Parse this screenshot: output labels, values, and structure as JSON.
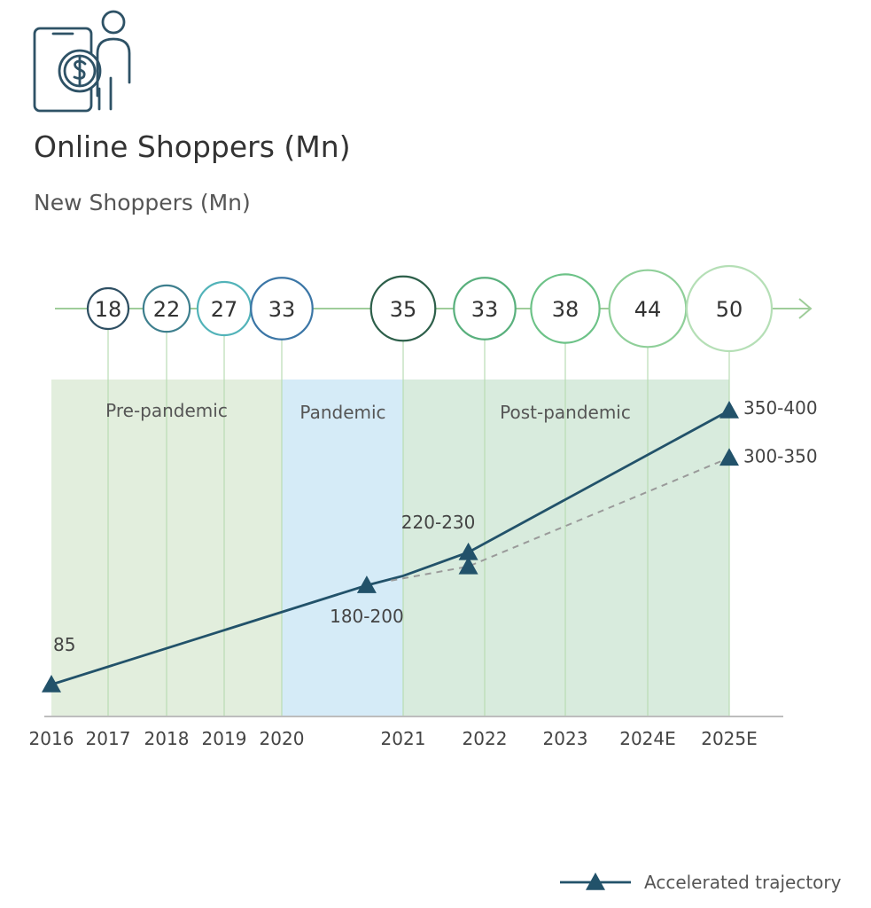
{
  "header": {
    "icon": "phone-shopper-dollar-icon",
    "title": "Online Shoppers (Mn)",
    "subtitle": "New Shoppers (Mn)"
  },
  "colors": {
    "dark_teal": "#22526a",
    "phase_pre": "#e2eedd",
    "phase_pandemic": "#d5ebf7",
    "phase_post": "#d8ebdd",
    "timeline": "#9fcd9a",
    "dashed": "#9a9a9a"
  },
  "chart_data": {
    "type": "line",
    "title": "Online Shoppers (Mn)",
    "subtitle": "New Shoppers (Mn)",
    "x_ticks": [
      "2016",
      "2017",
      "2018",
      "2019",
      "2020",
      "2021",
      "2022",
      "2023",
      "2024E",
      "2025E"
    ],
    "phases": [
      {
        "label": "Pre-pandemic",
        "from": "2016",
        "to": "2020"
      },
      {
        "label": "Pandemic",
        "from": "2020",
        "to": "2021"
      },
      {
        "label": "Post-pandemic",
        "from": "2021",
        "to": "2025E"
      }
    ],
    "new_shoppers": [
      {
        "year": "2017",
        "value": 18,
        "color": "#2e4f63"
      },
      {
        "year": "2018",
        "value": 22,
        "color": "#3e7f8e"
      },
      {
        "year": "2019",
        "value": 27,
        "color": "#52b3b9"
      },
      {
        "year": "2020",
        "value": 33,
        "color": "#3b76a6"
      },
      {
        "year": "2021",
        "value": 35,
        "color": "#2d5f4a"
      },
      {
        "year": "2022",
        "value": 33,
        "color": "#59b07d"
      },
      {
        "year": "2023",
        "value": 38,
        "color": "#6cc287"
      },
      {
        "year": "2024E",
        "value": 44,
        "color": "#8fcf99"
      },
      {
        "year": "2025E",
        "value": 50,
        "color": "#b5dfb6"
      }
    ],
    "series": [
      {
        "name": "Accelerated trajectory",
        "style": "solid",
        "color": "#22526a",
        "points": [
          {
            "x": 2016.0,
            "y": 85,
            "label": "85",
            "marker": true
          },
          {
            "x": 2020.7,
            "y": 190,
            "label": "180-200",
            "marker": true
          },
          {
            "x": 2021.0,
            "y": 200,
            "label": "",
            "marker": false
          },
          {
            "x": 2021.8,
            "y": 225,
            "label": "220-230",
            "marker": true
          },
          {
            "x": 2025.0,
            "y": 375,
            "label": "350-400",
            "marker": true
          }
        ]
      },
      {
        "style": "dashed",
        "color": "#9a9a9a",
        "points": [
          {
            "x": 2020.9,
            "y": 195,
            "label": "",
            "marker": false
          },
          {
            "x": 2021.8,
            "y": 210,
            "label": "",
            "marker": true
          },
          {
            "x": 2025.0,
            "y": 325,
            "label": "300-350",
            "marker": true
          }
        ]
      }
    ],
    "legend": {
      "position": "bottom-right",
      "label": "Accelerated trajectory"
    }
  }
}
